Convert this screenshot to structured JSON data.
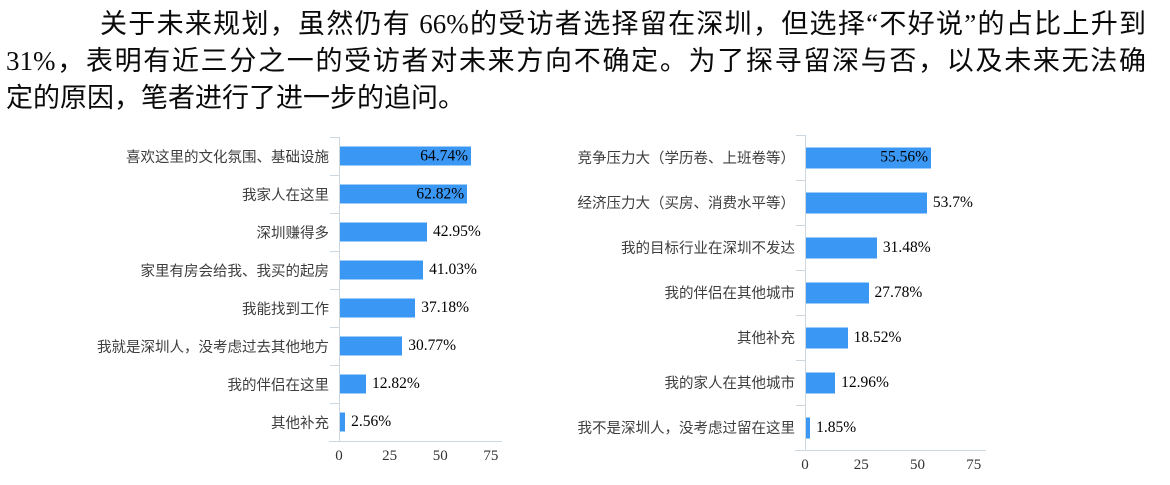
{
  "paragraph": {
    "lines": [
      "关于未来规划，虽然仍有 66%的受访者选择留在深圳，但选择“不好说”的占比上升到",
      "31%，表明有近三分之一的受访者对未来方向不确定。为了探寻留深与否，以及未来无法确",
      "定的原因，笔者进行了进一步的追问。"
    ]
  },
  "chart_data": [
    {
      "type": "bar",
      "orientation": "horizontal",
      "title": "",
      "xlabel": "",
      "ylabel": "",
      "categories": [
        "喜欢这里的文化氛围、基础设施",
        "我家人在这里",
        "深圳赚得多",
        "家里有房会给我、我买的起房",
        "我能找到工作",
        "我就是深圳人，没考虑过去其他地方",
        "我的伴侣在这里",
        "其他补充"
      ],
      "values": [
        64.74,
        62.82,
        42.95,
        41.03,
        37.18,
        30.77,
        12.82,
        2.56
      ],
      "value_labels": [
        "64.74%",
        "62.82%",
        "42.95%",
        "41.03%",
        "37.18%",
        "30.77%",
        "12.82%",
        "2.56%"
      ],
      "xlim": [
        0,
        80
      ],
      "xticks": [
        0,
        25,
        50,
        75
      ],
      "xtick_labels": [
        "0",
        "25",
        "50",
        "75"
      ],
      "grid": false,
      "legend": "none",
      "bar_color": "#3b97f4",
      "axis_color": "#ccd7e0"
    },
    {
      "type": "bar",
      "orientation": "horizontal",
      "title": "",
      "xlabel": "",
      "ylabel": "",
      "categories": [
        "竞争压力大（学历卷、上班卷等）",
        "经济压力大（买房、消费水平等）",
        "我的目标行业在深圳不发达",
        "我的伴侣在其他城市",
        "其他补充",
        "我的家人在其他城市",
        "我不是深圳人，没考虑过留在这里"
      ],
      "values": [
        55.56,
        53.7,
        31.48,
        27.78,
        18.52,
        12.96,
        1.85
      ],
      "value_labels": [
        "55.56%",
        "53.7%",
        "31.48%",
        "27.78%",
        "18.52%",
        "12.96%",
        "1.85%"
      ],
      "xlim": [
        0,
        80
      ],
      "xticks": [
        0,
        25,
        50,
        75
      ],
      "xtick_labels": [
        "0",
        "25",
        "50",
        "75"
      ],
      "grid": false,
      "legend": "none",
      "bar_color": "#3b97f4",
      "axis_color": "#ccd7e0"
    }
  ]
}
